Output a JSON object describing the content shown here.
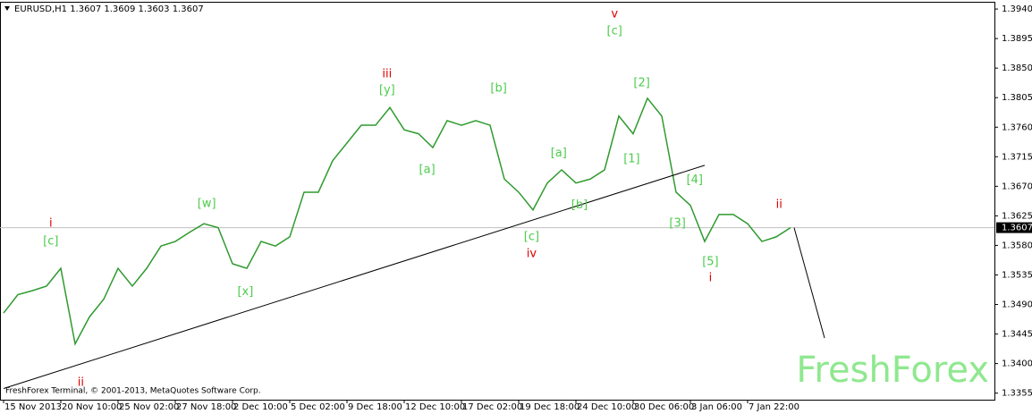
{
  "chart_data": {
    "type": "line",
    "title": "EURUSD,H1  1.3607 1.3609 1.3603 1.3607",
    "footer": "FreshForex Terminal, © 2001-2013, MetaQuotes Software Corp.",
    "watermark": "FreshForex",
    "categories": [
      "15 Nov 2013",
      null,
      null,
      null,
      "20 Nov 10:00",
      null,
      null,
      null,
      "25 Nov 02:00",
      null,
      null,
      null,
      "27 Nov 18:00",
      null,
      null,
      null,
      "2 Dec 10:00",
      null,
      null,
      null,
      "5 Dec 02:00",
      null,
      null,
      null,
      "9 Dec 18:00",
      null,
      null,
      null,
      "12 Dec 10:00",
      null,
      null,
      null,
      "17 Dec 02:00",
      null,
      null,
      null,
      "19 Dec 18:00",
      null,
      null,
      null,
      "24 Dec 10:00",
      null,
      null,
      null,
      "30 Dec 06:00",
      null,
      null,
      null,
      "3 Jan 06:00",
      null,
      null,
      null,
      "7 Jan 22:00",
      null,
      null,
      null
    ],
    "series": [
      {
        "name": "EURUSD,H1",
        "color": "#2f9a2f",
        "values": [
          1.3477,
          1.3505,
          1.3511,
          1.3518,
          1.3545,
          1.343,
          1.3471,
          1.3498,
          1.3545,
          1.3518,
          1.3545,
          1.3579,
          1.3586,
          1.36,
          1.3613,
          1.3607,
          1.3552,
          1.3545,
          1.3586,
          1.3579,
          1.3593,
          1.3661,
          1.3661,
          1.3709,
          1.3736,
          1.3763,
          1.3763,
          1.379,
          1.3756,
          1.375,
          1.3729,
          1.377,
          1.3763,
          1.377,
          1.3763,
          1.3681,
          1.3661,
          1.3634,
          1.3675,
          1.3695,
          1.3675,
          1.3681,
          1.3695,
          1.3777,
          1.375,
          1.3804,
          1.3777,
          1.3661,
          1.3641,
          1.3586,
          1.3627,
          1.3627,
          1.3613,
          1.3586,
          1.3593,
          1.3607
        ]
      }
    ],
    "ylim": [
      1.3345,
      1.3951
    ],
    "yticks": [
      {
        "value": 1.3355,
        "label": "1.3355"
      },
      {
        "value": 1.34,
        "label": "1.3400"
      },
      {
        "value": 1.3445,
        "label": "1.3445"
      },
      {
        "value": 1.349,
        "label": "1.3490"
      },
      {
        "value": 1.3535,
        "label": "1.3535"
      },
      {
        "value": 1.358,
        "label": "1.3580"
      },
      {
        "value": 1.3625,
        "label": "1.3625"
      },
      {
        "value": 1.367,
        "label": "1.3670"
      },
      {
        "value": 1.3715,
        "label": "1.3715"
      },
      {
        "value": 1.376,
        "label": "1.3760"
      },
      {
        "value": 1.3805,
        "label": "1.3805"
      },
      {
        "value": 1.385,
        "label": "1.3850"
      },
      {
        "value": 1.3895,
        "label": "1.3895"
      },
      {
        "value": 1.394,
        "label": "1.3940"
      }
    ],
    "price_line": {
      "value": 1.3607,
      "label": "1.3607"
    },
    "trendlines": [
      {
        "x": [
          0,
          49
        ],
        "y": [
          1.3362,
          1.3702
        ]
      },
      {
        "x": [
          55.25,
          57.375
        ],
        "y": [
          1.3607,
          1.3439
        ]
      }
    ],
    "annotations": [
      {
        "text": "i",
        "color": "#e00000",
        "x": 3.3,
        "y": 1.3613
      },
      {
        "text": "[c]",
        "color": "#4ccc4c",
        "x": 3.3,
        "y": 1.3586
      },
      {
        "text": "ii",
        "color": "#e00000",
        "x": 5.4,
        "y": 1.3371
      },
      {
        "text": "[w]",
        "color": "#4ccc4c",
        "x": 14.2,
        "y": 1.3643
      },
      {
        "text": "[x]",
        "color": "#4ccc4c",
        "x": 16.9,
        "y": 1.3509
      },
      {
        "text": "iii",
        "color": "#e00000",
        "x": 26.8,
        "y": 1.3841
      },
      {
        "text": "[y]",
        "color": "#4ccc4c",
        "x": 26.8,
        "y": 1.3816
      },
      {
        "text": "[a]",
        "color": "#4ccc4c",
        "x": 29.6,
        "y": 1.3695
      },
      {
        "text": "[b]",
        "color": "#4ccc4c",
        "x": 34.6,
        "y": 1.3819
      },
      {
        "text": "[c]",
        "color": "#4ccc4c",
        "x": 36.9,
        "y": 1.3593
      },
      {
        "text": "iv",
        "color": "#e00000",
        "x": 36.9,
        "y": 1.3567
      },
      {
        "text": "[a]",
        "color": "#4ccc4c",
        "x": 38.8,
        "y": 1.372
      },
      {
        "text": "[b]",
        "color": "#4ccc4c",
        "x": 40.25,
        "y": 1.3641
      },
      {
        "text": "v",
        "color": "#e00000",
        "x": 42.7,
        "y": 1.3932
      },
      {
        "text": "[c]",
        "color": "#4ccc4c",
        "x": 42.7,
        "y": 1.3906
      },
      {
        "text": "[2]",
        "color": "#4ccc4c",
        "x": 44.6,
        "y": 1.3827
      },
      {
        "text": "[1]",
        "color": "#4ccc4c",
        "x": 43.9,
        "y": 1.3711
      },
      {
        "text": "[4]",
        "color": "#4ccc4c",
        "x": 48.3,
        "y": 1.3679
      },
      {
        "text": "[3]",
        "color": "#4ccc4c",
        "x": 47.1,
        "y": 1.3613
      },
      {
        "text": "[5]",
        "color": "#4ccc4c",
        "x": 49.4,
        "y": 1.3555
      },
      {
        "text": "i",
        "color": "#e00000",
        "x": 49.4,
        "y": 1.353
      },
      {
        "text": "ii",
        "color": "#e00000",
        "x": 54.2,
        "y": 1.3642
      }
    ]
  }
}
